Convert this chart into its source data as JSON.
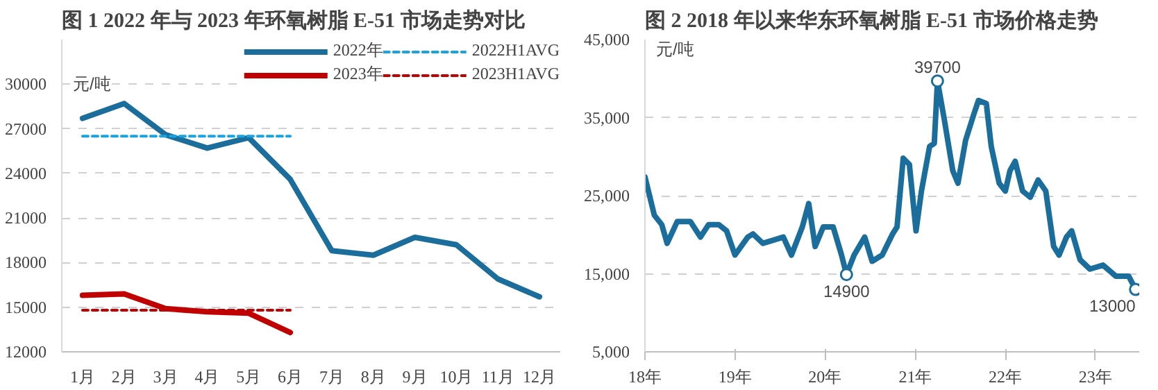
{
  "chart_data": [
    {
      "type": "line",
      "title": "图 1  2022 年与 2023 年环氧树脂 E-51 市场走势对比",
      "ylabel": "元/吨",
      "categories": [
        "1月",
        "2月",
        "3月",
        "4月",
        "5月",
        "6月",
        "7月",
        "8月",
        "9月",
        "10月",
        "11月",
        "12月"
      ],
      "series": [
        {
          "name": "2022年",
          "color": "#1b6e9c",
          "line_style": "solid",
          "values": [
            27700,
            28700,
            26600,
            25700,
            26400,
            23600,
            18800,
            18500,
            19700,
            19200,
            16900,
            15700
          ]
        },
        {
          "name": "2023年",
          "color": "#c00000",
          "line_style": "solid",
          "values": [
            15800,
            15900,
            14900,
            14700,
            14600,
            13300,
            null,
            null,
            null,
            null,
            null,
            null
          ]
        },
        {
          "name": "2022H1AVG",
          "color": "#1ba3e0",
          "line_style": "dashed",
          "values": [
            26500,
            26500,
            26500,
            26500,
            26500,
            26500,
            null,
            null,
            null,
            null,
            null,
            null
          ]
        },
        {
          "name": "2023H1AVG",
          "color": "#c00000",
          "line_style": "dashed",
          "values": [
            14800,
            14800,
            14800,
            14800,
            14800,
            14800,
            null,
            null,
            null,
            null,
            null,
            null
          ]
        }
      ],
      "ylim": [
        12000,
        33000
      ],
      "yticks": [
        12000,
        15000,
        18000,
        21000,
        24000,
        27000,
        30000
      ],
      "grid": "y",
      "legend": "top right"
    },
    {
      "type": "line",
      "title": "图 2  2018 年以来华东环氧树脂 E-51 市场价格走势",
      "ylabel": "元/吨",
      "x": [
        "2018-01-01",
        "2018-02-08",
        "2018-03-10",
        "2018-04-01",
        "2018-05-12",
        "2018-07-04",
        "2018-08-14",
        "2018-09-16",
        "2018-10-27",
        "2018-11-28",
        "2019-01-01",
        "2019-02-22",
        "2019-03-15",
        "2019-04-24",
        "2019-06-05",
        "2019-07-16",
        "2019-08-18",
        "2019-10-01",
        "2019-10-27",
        "2019-11-22",
        "2019-12-25",
        "2020-02-03",
        "2020-03-08",
        "2020-03-28",
        "2020-04-28",
        "2020-06-10",
        "2020-07-10",
        "2020-08-20",
        "2020-10-01",
        "2020-10-19",
        "2020-11-13",
        "2020-12-08",
        "2021-01-04",
        "2021-01-26",
        "2021-02-28",
        "2021-03-19",
        "2021-04-01",
        "2021-04-30",
        "2021-06-02",
        "2021-06-23",
        "2021-07-24",
        "2021-08-25",
        "2021-09-14",
        "2021-10-16",
        "2021-11-05",
        "2021-12-07",
        "2022-01-01",
        "2022-01-20",
        "2022-02-10",
        "2022-03-12",
        "2022-04-12",
        "2022-05-14",
        "2022-06-14",
        "2022-07-16",
        "2022-08-07",
        "2022-09-06",
        "2022-09-27",
        "2022-10-31",
        "2022-12-10",
        "2023-02-01",
        "2023-03-25",
        "2023-05-16",
        "2023-06-13"
      ],
      "series": [
        {
          "color": "#1b6e9c",
          "values": [
            27400,
            22500,
            21300,
            18900,
            21700,
            21700,
            19700,
            21300,
            21300,
            20500,
            17400,
            19700,
            20100,
            18900,
            19300,
            19700,
            17400,
            21000,
            24000,
            18500,
            21000,
            21000,
            17400,
            14900,
            17400,
            19700,
            16600,
            17400,
            20100,
            21000,
            29800,
            29000,
            20500,
            25600,
            31300,
            31700,
            39700,
            34500,
            28200,
            26600,
            32100,
            35300,
            37200,
            36800,
            31300,
            26600,
            25600,
            28200,
            29400,
            25600,
            24800,
            27000,
            25600,
            18500,
            17400,
            19700,
            20500,
            16800,
            15600,
            16100,
            14700,
            14700,
            13000
          ]
        }
      ],
      "xlim": [
        "2018-01-01",
        "2023-06-28"
      ],
      "xticks": [
        {
          "value": "2018-01-01",
          "label": "18年"
        },
        {
          "value": "2019-01-01",
          "label": "19年"
        },
        {
          "value": "2020-01-01",
          "label": "20年"
        },
        {
          "value": "2021-01-01",
          "label": "21年"
        },
        {
          "value": "2022-01-01",
          "label": "22年"
        },
        {
          "value": "2023-01-01",
          "label": "23年"
        }
      ],
      "ylim": [
        5000,
        45000
      ],
      "yticks": [
        {
          "value": 5000,
          "label": "5,000"
        },
        {
          "value": 15000,
          "label": "15,000"
        },
        {
          "value": 25000,
          "label": "25,000"
        },
        {
          "value": 35000,
          "label": "35,000"
        },
        {
          "value": 45000,
          "label": "45,000"
        }
      ],
      "grid": "y",
      "annotations": [
        {
          "text": "39700",
          "x": "2021-04-01",
          "y": 39700
        },
        {
          "text": "14900",
          "x": "2020-03-28",
          "y": 14900
        },
        {
          "text": "13000",
          "x": "2023-06-13",
          "y": 13000
        }
      ]
    }
  ]
}
